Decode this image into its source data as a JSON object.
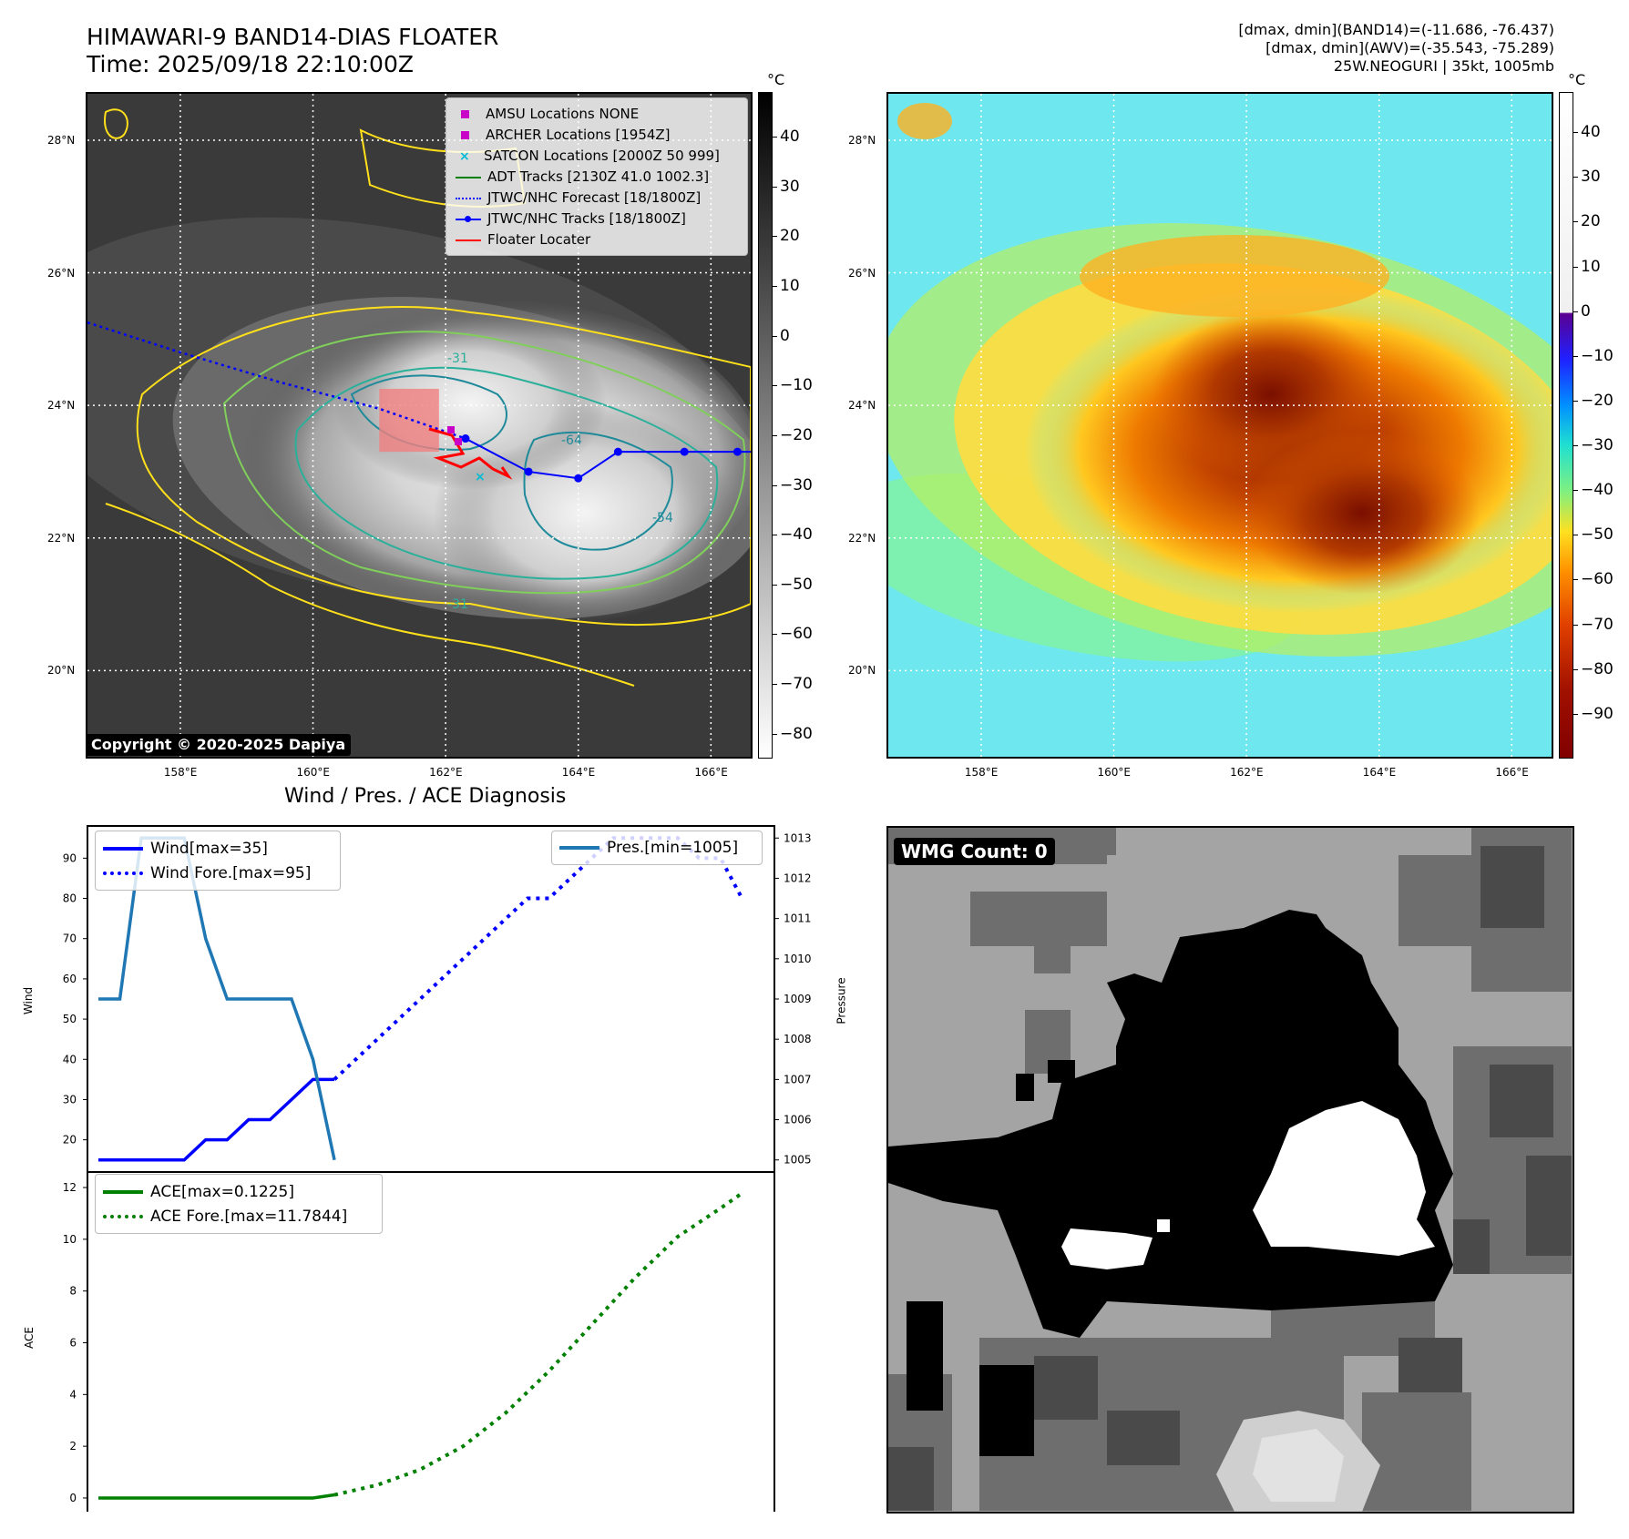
{
  "header": {
    "title": "HIMAWARI-9 BAND14-DIAS FLOATER",
    "time": "Time: 2025/09/18 22:10:00Z",
    "info_line1": "[dmax, dmin](BAND14)=(-11.686, -76.437)",
    "info_line2": "[dmax, dmin](AWV)=(-35.543, -75.289)",
    "info_line3": "25W.NEOGURI | 35kt, 1005mb"
  },
  "map": {
    "lat_labels": [
      "28°N",
      "26°N",
      "24°N",
      "22°N",
      "20°N"
    ],
    "lat_values": [
      28,
      26,
      24,
      22,
      20
    ],
    "lon_labels": [
      "158°E",
      "160°E",
      "162°E",
      "164°E",
      "166°E"
    ],
    "lon_values": [
      158,
      160,
      162,
      164,
      166
    ],
    "lon_range": [
      156.6,
      166.6
    ],
    "lat_range": [
      18.7,
      28.7
    ],
    "copyright": "Copyright © 2020-2025 Dapiya",
    "contour_labels": [
      "-31",
      "-54",
      "-64",
      "-54",
      "-31"
    ],
    "legend": [
      {
        "label": "AMSU Locations NONE",
        "marker": "square",
        "color": "#c800c8"
      },
      {
        "label": "ARCHER Locations [1954Z]",
        "marker": "square",
        "color": "#c800c8"
      },
      {
        "label": "SATCON Locations [2000Z 50 999]",
        "marker": "x",
        "color": "#00bcd4"
      },
      {
        "label": "ADT Tracks [2130Z 41.0 1002.3]",
        "marker": "line",
        "color": "#008000"
      },
      {
        "label": "JTWC/NHC Forecast [18/1800Z]",
        "marker": "dotted",
        "color": "#0000ff"
      },
      {
        "label": "JTWC/NHC Tracks [18/1800Z]",
        "marker": "line-dot",
        "color": "#0000ff"
      },
      {
        "label": "Floater Locater",
        "marker": "line",
        "color": "#ff0000"
      }
    ],
    "track": {
      "forecast_dotted": [
        [
          156.6,
          25.25
        ],
        [
          158.0,
          24.8
        ],
        [
          159.5,
          24.35
        ],
        [
          161.0,
          23.95
        ],
        [
          162.3,
          23.5
        ]
      ],
      "best_track": [
        [
          162.3,
          23.5
        ],
        [
          163.25,
          23.0
        ],
        [
          164.0,
          22.9
        ],
        [
          164.6,
          23.3
        ],
        [
          165.6,
          23.3
        ],
        [
          166.4,
          23.3
        ],
        [
          166.6,
          23.3
        ]
      ],
      "best_track_points": [
        [
          162.3,
          23.5
        ],
        [
          163.25,
          23.0
        ],
        [
          164.0,
          22.9
        ],
        [
          164.6,
          23.3
        ],
        [
          165.6,
          23.3
        ],
        [
          166.4,
          23.3
        ]
      ]
    },
    "colorbar_left": {
      "unit": "°C",
      "ticks": [
        "40",
        "30",
        "20",
        "10",
        "0",
        "−10",
        "−20",
        "−30",
        "−40",
        "−50",
        "−60",
        "−70",
        "−80"
      ],
      "range": [
        49,
        -85
      ]
    },
    "colorbar_right": {
      "unit": "°C",
      "ticks": [
        "40",
        "30",
        "20",
        "10",
        "0",
        "−10",
        "−20",
        "−30",
        "−40",
        "−50",
        "−60",
        "−70",
        "−80",
        "−90"
      ],
      "range": [
        49,
        -100
      ]
    }
  },
  "diagnosis": {
    "title": "Wind / Pres. / ACE Diagnosis",
    "wind_label": "Wind",
    "pressure_label": "Pressure",
    "ace_label": "ACE",
    "legend_wind": "Wind[max=35]",
    "legend_wind_fore": "Wind Fore.[max=95]",
    "legend_pres": "Pres.[min=1005]",
    "legend_ace": "ACE[max=0.1225]",
    "legend_ace_fore": "ACE Fore.[max=11.7844]",
    "wmg": "WMG Count: 0"
  },
  "chart_data": [
    {
      "type": "line",
      "name": "Wind / Pres.",
      "x": [
        0,
        1,
        2,
        3,
        4,
        5,
        6,
        7,
        8,
        9,
        10,
        11,
        12,
        13,
        14,
        15,
        16,
        17,
        18,
        19,
        20,
        21,
        22,
        23,
        24,
        25,
        26,
        27,
        28,
        29,
        30
      ],
      "ylim_left": [
        12,
        98
      ],
      "ylim_right": [
        1004.7,
        1013.3
      ],
      "yticks_left": [
        20,
        30,
        40,
        50,
        60,
        70,
        80,
        90
      ],
      "yticks_right": [
        1005,
        1006,
        1007,
        1008,
        1009,
        1010,
        1011,
        1012,
        1013
      ],
      "series": [
        {
          "name": "Wind[max=35]",
          "axis": "left",
          "style": "solid",
          "color": "#0000ff",
          "x": [
            0,
            1,
            2,
            3,
            4,
            5,
            6,
            7,
            8,
            9,
            10,
            11
          ],
          "values": [
            15,
            15,
            15,
            15,
            15,
            20,
            20,
            25,
            25,
            30,
            35,
            35
          ]
        },
        {
          "name": "Wind Fore.[max=95]",
          "axis": "left",
          "style": "dotted",
          "color": "#0000ff",
          "x": [
            11,
            13,
            15,
            17,
            19,
            20,
            21,
            22,
            23,
            24,
            25,
            26,
            27,
            28,
            29,
            30
          ],
          "values": [
            35,
            45,
            55,
            65,
            75,
            80,
            80,
            85,
            90,
            95,
            95,
            95,
            95,
            90,
            90,
            80
          ]
        },
        {
          "name": "Pres.[min=1005]",
          "axis": "right",
          "style": "solid",
          "color": "#1f77b4",
          "x": [
            0,
            1,
            2,
            3,
            4,
            5,
            6,
            7,
            8,
            9,
            10,
            11
          ],
          "values": [
            1009,
            1009,
            1013,
            1013,
            1013,
            1010.5,
            1009,
            1009,
            1009,
            1009,
            1007.5,
            1005
          ]
        }
      ]
    },
    {
      "type": "line",
      "name": "ACE",
      "x": [
        0,
        30
      ],
      "ylim": [
        -0.6,
        12.6
      ],
      "yticks": [
        0,
        2,
        4,
        6,
        8,
        10,
        12
      ],
      "series": [
        {
          "name": "ACE[max=0.1225]",
          "style": "solid",
          "color": "#008000",
          "x": [
            0,
            10,
            11
          ],
          "values": [
            0,
            0,
            0.1225
          ]
        },
        {
          "name": "ACE Fore.[max=11.7844]",
          "style": "dotted",
          "color": "#008000",
          "x": [
            11,
            13,
            15,
            17,
            19,
            21,
            23,
            25,
            27,
            29,
            30
          ],
          "values": [
            0.12,
            0.5,
            1.1,
            2.0,
            3.3,
            4.9,
            6.7,
            8.5,
            10.1,
            11.2,
            11.78
          ]
        }
      ]
    }
  ]
}
